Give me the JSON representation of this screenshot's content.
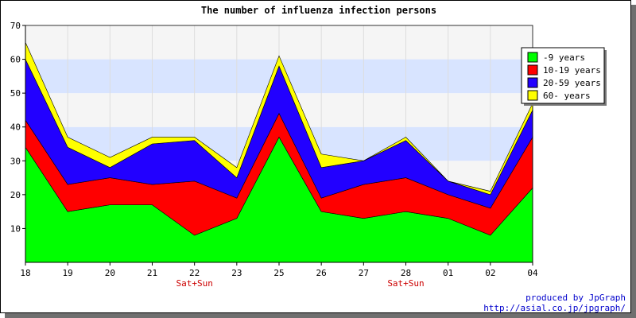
{
  "chart_data": {
    "type": "area",
    "stacked": true,
    "title": "The number of influenza infection persons",
    "categories": [
      "18",
      "19",
      "20",
      "21",
      "22",
      "23",
      "25",
      "26",
      "27",
      "28",
      "01",
      "02",
      "04"
    ],
    "weekend_labels": [
      {
        "category": "22",
        "text": "Sat+Sun"
      },
      {
        "category": "28",
        "text": "Sat+Sun"
      }
    ],
    "ylim": [
      0,
      70
    ],
    "yticks": [
      10,
      20,
      30,
      40,
      50,
      60,
      70
    ],
    "legend_position": "top-right",
    "series": [
      {
        "name": "-9 years",
        "color": "#00ff00",
        "values": [
          34,
          15,
          17,
          17,
          8,
          13,
          37,
          15,
          13,
          15,
          13,
          8,
          22
        ]
      },
      {
        "name": "10-19 years",
        "color": "#ff0000",
        "values": [
          8,
          8,
          8,
          6,
          16,
          6,
          7,
          4,
          10,
          10,
          7,
          8,
          15
        ]
      },
      {
        "name": "20-59 years",
        "color": "#2200ff",
        "values": [
          18,
          11,
          3,
          12,
          12,
          6,
          14,
          9,
          7,
          11,
          4,
          4,
          8
        ]
      },
      {
        "name": "60- years",
        "color": "#ffff00",
        "values": [
          5,
          3,
          3,
          2,
          1,
          3,
          3,
          4,
          0,
          1,
          0,
          1,
          2
        ]
      }
    ]
  },
  "footer": {
    "credit": "produced by JpGraph",
    "url": "http://asial.co.jp/jpgraph/"
  }
}
